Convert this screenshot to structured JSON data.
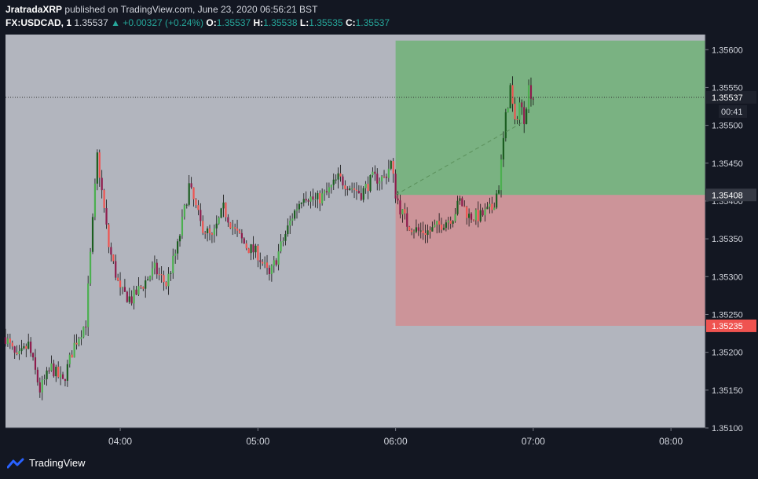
{
  "header": {
    "author": "JratradaXRP",
    "published_text": "published on TradingView.com, June 23, 2020 06:56:21 BST",
    "symbol": "FX:USDCAD, 1",
    "last_price": "1.35537",
    "change": "▲ +0.00327 (+0.24%)",
    "o_label": "O:",
    "o_value": "1.35537",
    "h_label": "H:",
    "h_value": "1.35538",
    "l_label": "L:",
    "l_value": "1.35535",
    "c_label": "C:",
    "c_value": "1.35537"
  },
  "footer": {
    "brand": "TradingView"
  },
  "colors": {
    "background": "#131722",
    "plot_bg": "#b2b5be",
    "bull": "#4caf50",
    "bull_dark": "#1b5e20",
    "bear": "#ef5350",
    "bear_dark": "#8e1b4c",
    "profit_zone": "#4caf50",
    "loss_zone": "#e57373",
    "price_badge": "#363a45",
    "stop_badge": "#ef5350"
  },
  "chart_data": {
    "type": "candlestick",
    "x_ticks": [
      "04:00",
      "05:00",
      "06:00",
      "07:00",
      "08:00"
    ],
    "x_tick_values": [
      240,
      300,
      360,
      420,
      480
    ],
    "x_range": [
      190,
      495
    ],
    "y_ticks": [
      "1.35600",
      "1.35550",
      "1.35500",
      "1.35450",
      "1.35400",
      "1.35350",
      "1.35300",
      "1.35250",
      "1.35200",
      "1.35150",
      "1.35100"
    ],
    "y_range": [
      1.351,
      1.3562
    ],
    "last_price": 1.35537,
    "last_price_label": "1.35537",
    "countdown_label": "00:41",
    "position": {
      "entry_time": 360,
      "exit_time": 495,
      "entry": 1.35408,
      "entry_label": "1.35408",
      "take_profit": 1.35612,
      "stop_loss": 1.35235,
      "stop_label": "1.35235"
    },
    "anchors": [
      [
        190,
        1.3522
      ],
      [
        195,
        1.3519
      ],
      [
        200,
        1.3521
      ],
      [
        205,
        1.3515
      ],
      [
        210,
        1.3518
      ],
      [
        215,
        1.3516
      ],
      [
        220,
        1.3521
      ],
      [
        225,
        1.3524
      ],
      [
        230,
        1.3546
      ],
      [
        235,
        1.3534
      ],
      [
        240,
        1.3528
      ],
      [
        245,
        1.3527
      ],
      [
        250,
        1.3529
      ],
      [
        255,
        1.3531
      ],
      [
        260,
        1.3529
      ],
      [
        265,
        1.3534
      ],
      [
        270,
        1.3542
      ],
      [
        275,
        1.3537
      ],
      [
        280,
        1.3535
      ],
      [
        285,
        1.3539
      ],
      [
        290,
        1.3536
      ],
      [
        295,
        1.3534
      ],
      [
        300,
        1.3533
      ],
      [
        305,
        1.353
      ],
      [
        310,
        1.3534
      ],
      [
        315,
        1.3538
      ],
      [
        320,
        1.3541
      ],
      [
        325,
        1.354
      ],
      [
        330,
        1.3541
      ],
      [
        335,
        1.3543
      ],
      [
        340,
        1.3542
      ],
      [
        345,
        1.3541
      ],
      [
        350,
        1.3543
      ],
      [
        355,
        1.3543
      ],
      [
        358,
        1.3545
      ],
      [
        360,
        1.3541
      ],
      [
        362,
        1.3539
      ],
      [
        365,
        1.3537
      ],
      [
        370,
        1.3536
      ],
      [
        375,
        1.3536
      ],
      [
        380,
        1.3537
      ],
      [
        385,
        1.3538
      ],
      [
        388,
        1.354
      ],
      [
        392,
        1.3538
      ],
      [
        397,
        1.3538
      ],
      [
        402,
        1.3539
      ],
      [
        405,
        1.3542
      ],
      [
        408,
        1.3551
      ],
      [
        410,
        1.3555
      ],
      [
        412,
        1.355
      ],
      [
        414,
        1.3553
      ],
      [
        416,
        1.3551
      ],
      [
        418,
        1.3555
      ],
      [
        420,
        1.35537
      ]
    ]
  }
}
